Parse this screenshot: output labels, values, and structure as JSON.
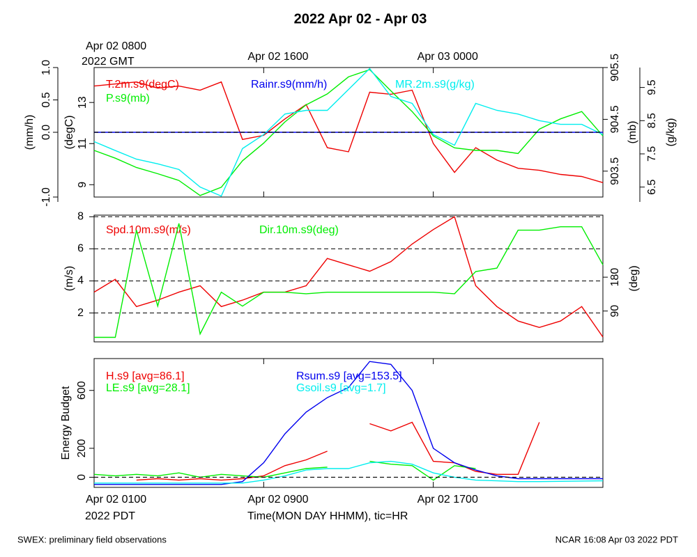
{
  "title": "2022 Apr 02 - Apr 03",
  "footer_left": "SWEX: preliminary field observations",
  "footer_right": "NCAR 16:08 Apr 03 2022 PDT",
  "chart_data": [
    {
      "type": "line",
      "top_note": "2022 GMT",
      "xlim": [
        0,
        24
      ],
      "xticks": [
        {
          "value": 0,
          "label": "Apr 02 0800"
        },
        {
          "value": 8,
          "label": "Apr 02 1600"
        },
        {
          "value": 16,
          "label": "Apr 03 0000"
        }
      ],
      "x": [
        0,
        1,
        2,
        3,
        4,
        5,
        6,
        7,
        8,
        9,
        10,
        11,
        12,
        13,
        14,
        15,
        16,
        17,
        18,
        19,
        20,
        21,
        22,
        23,
        24
      ],
      "ylabel": "(mm/h)",
      "ylim": [
        -1,
        1
      ],
      "yticks": [
        {
          "value": -1,
          "label": "-1.0"
        },
        {
          "value": 0,
          "label": "0.0"
        },
        0.5,
        {
          "value": 1,
          "label": "1.0"
        }
      ],
      "y2label": "(degC)",
      "y2lim": [
        8.4,
        14.7
      ],
      "y2ticks": [
        9,
        11,
        13
      ],
      "y3label": "(mb)",
      "y3lim": [
        903.0,
        905.5
      ],
      "y3ticks": [
        903.5,
        904.5,
        905.5
      ],
      "y4label": "(g/kg)",
      "y4lim": [
        6.2,
        10.1
      ],
      "y4ticks": [
        6.5,
        7.5,
        8.5,
        9.5
      ],
      "zero_line": true,
      "series": [
        {
          "name": "T.2m.s9(degC)",
          "color": "#ee0000",
          "axis": "y2",
          "values": [
            13.8,
            13.9,
            14.0,
            13.7,
            13.8,
            13.6,
            14.0,
            11.2,
            11.4,
            12.2,
            12.9,
            10.8,
            10.6,
            13.5,
            13.4,
            13.6,
            11.0,
            9.6,
            10.8,
            10.2,
            9.8,
            9.7,
            9.5,
            9.4,
            9.1
          ]
        },
        {
          "name": "P.s9(mb)",
          "color": "#00ee00",
          "axis": "y3",
          "values": [
            903.9,
            903.75,
            903.57,
            903.45,
            903.32,
            903.03,
            903.19,
            903.7,
            904.04,
            904.45,
            904.78,
            904.99,
            905.32,
            905.46,
            905.05,
            904.65,
            904.18,
            903.95,
            903.9,
            903.9,
            903.84,
            904.31,
            904.51,
            904.65,
            904.18
          ]
        },
        {
          "name": "Rainr.s9(mm/h)",
          "color": "#0000ee",
          "axis": "y",
          "values": [
            0,
            0,
            0,
            0,
            0,
            0,
            0,
            0,
            0,
            0,
            0,
            0,
            0,
            0,
            0,
            0,
            0,
            0,
            0,
            0,
            0,
            0,
            0,
            0,
            0
          ]
        },
        {
          "name": "MR.2m.s9(g/kg)",
          "color": "#00eeee",
          "axis": "y4",
          "values": [
            7.87,
            7.6,
            7.34,
            7.2,
            7.03,
            6.5,
            6.23,
            7.66,
            8.08,
            8.7,
            8.81,
            8.81,
            9.44,
            10.07,
            9.23,
            9.02,
            8.08,
            7.76,
            9.02,
            8.81,
            8.7,
            8.5,
            8.39,
            8.39,
            8.08
          ]
        }
      ]
    },
    {
      "type": "line",
      "xlim": [
        0,
        24
      ],
      "x": [
        0,
        1,
        2,
        3,
        4,
        5,
        6,
        7,
        8,
        9,
        10,
        11,
        12,
        13,
        14,
        15,
        16,
        17,
        18,
        19,
        20,
        21,
        22,
        23,
        24
      ],
      "ylabel": "(m/s)",
      "ylim": [
        0.2,
        8.1
      ],
      "yticks": [
        2,
        4,
        6,
        8
      ],
      "y2label": "(deg)",
      "y2lim": [
        8,
        345
      ],
      "y2ticks": [
        90,
        180
      ],
      "grid": true,
      "series": [
        {
          "name": "Spd.10m.s9(m/s)",
          "color": "#ee0000",
          "axis": "y",
          "values": [
            3.3,
            4.1,
            2.4,
            2.8,
            3.3,
            3.7,
            2.4,
            2.8,
            3.3,
            3.3,
            3.7,
            5.4,
            5.0,
            4.6,
            5.2,
            6.3,
            7.2,
            8.0,
            3.7,
            2.4,
            1.5,
            1.1,
            1.5,
            2.4,
            0.5
          ]
        },
        {
          "name": "Dir.10m.s9(deg)",
          "color": "#00ee00",
          "axis": "y2",
          "values": [
            20,
            20,
            305,
            103,
            323,
            29,
            140,
            103,
            140,
            140,
            136,
            140,
            140,
            140,
            140,
            140,
            140,
            136,
            195,
            204,
            305,
            305,
            314,
            314,
            213
          ]
        }
      ]
    },
    {
      "type": "line",
      "bottom_note": "2022 PDT",
      "xlabel": "Time(MON DAY HHMM), tic=HR",
      "xlim": [
        0,
        24
      ],
      "xticks": [
        {
          "value": 0,
          "label": "Apr 02 0100"
        },
        {
          "value": 8,
          "label": "Apr 02 0900"
        },
        {
          "value": 16,
          "label": "Apr 02 1700"
        }
      ],
      "x": [
        0,
        1,
        2,
        3,
        4,
        5,
        6,
        7,
        8,
        9,
        10,
        11,
        12,
        13,
        14,
        15,
        16,
        17,
        18,
        19,
        20,
        21,
        22,
        23,
        24
      ],
      "ylabel": "Energy Budget",
      "ylim": [
        -70,
        820
      ],
      "yticks": [
        0,
        200,
        600
      ],
      "zero_line": true,
      "series": [
        {
          "name": "H.s9 [avg=86.1]",
          "color": "#ee0000",
          "axis": "y",
          "values": [
            null,
            null,
            -20,
            -10,
            -20,
            -10,
            -20,
            -10,
            10,
            80,
            120,
            180,
            null,
            370,
            320,
            380,
            110,
            100,
            40,
            20,
            20,
            380,
            null,
            null,
            null
          ]
        },
        {
          "name": "LE.s9 [avg=28.1]",
          "color": "#00ee00",
          "axis": "y",
          "values": [
            20,
            10,
            20,
            10,
            30,
            0,
            20,
            10,
            0,
            30,
            60,
            70,
            null,
            110,
            90,
            80,
            -20,
            80,
            60,
            null,
            null,
            null,
            null,
            null,
            null
          ]
        },
        {
          "name": "Rsum.s9 [avg=153.5]",
          "color": "#0000ee",
          "axis": "y",
          "values": [
            -50,
            -50,
            -50,
            -50,
            -50,
            -50,
            -50,
            -30,
            100,
            300,
            450,
            550,
            620,
            800,
            780,
            600,
            200,
            100,
            50,
            10,
            -10,
            -10,
            -10,
            -10,
            -10
          ]
        },
        {
          "name": "Gsoil.s9 [avg=1.7]",
          "color": "#00eeee",
          "axis": "y",
          "values": [
            -40,
            -40,
            -40,
            -40,
            -40,
            -40,
            -40,
            -40,
            -20,
            10,
            50,
            60,
            60,
            100,
            110,
            90,
            30,
            0,
            -20,
            -25,
            -30,
            -30,
            -28,
            -26,
            -25
          ]
        }
      ]
    }
  ]
}
